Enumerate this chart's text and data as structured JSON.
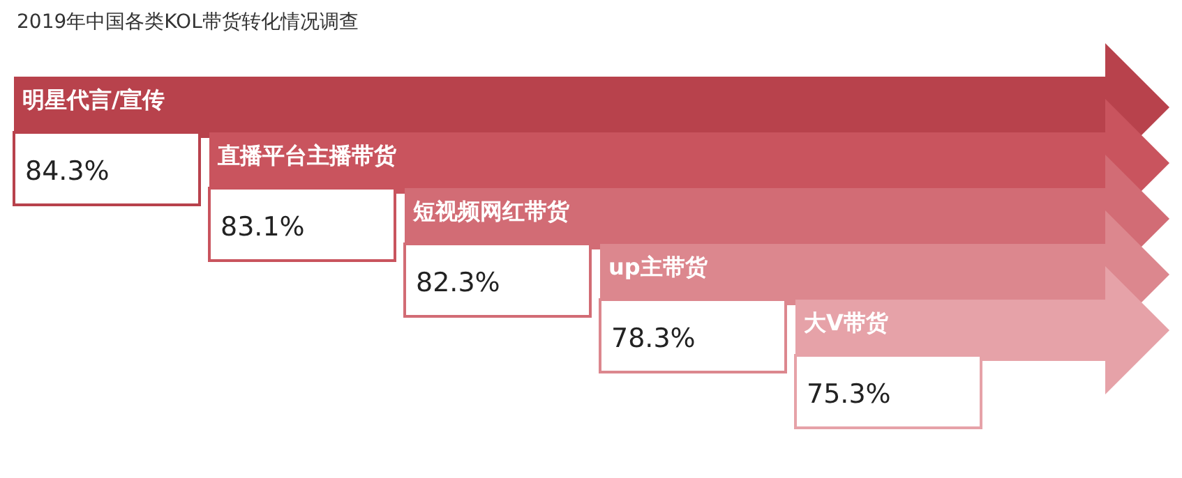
{
  "chart_data": {
    "type": "other",
    "title": "2019年中国各类KOL带货转化情况调查",
    "categories": [
      "明星代言/宣传",
      "直播平台主播带货",
      "短视频网红带货",
      "up主带货",
      "大V带货"
    ],
    "values": [
      84.3,
      83.1,
      82.3,
      78.3,
      75.3
    ],
    "value_labels": [
      "84.3%",
      "83.1%",
      "82.3%",
      "78.3%",
      "75.3%"
    ],
    "colors": [
      "#b8424c",
      "#c9545e",
      "#d26c75",
      "#dc878e",
      "#e6a2a8"
    ]
  }
}
